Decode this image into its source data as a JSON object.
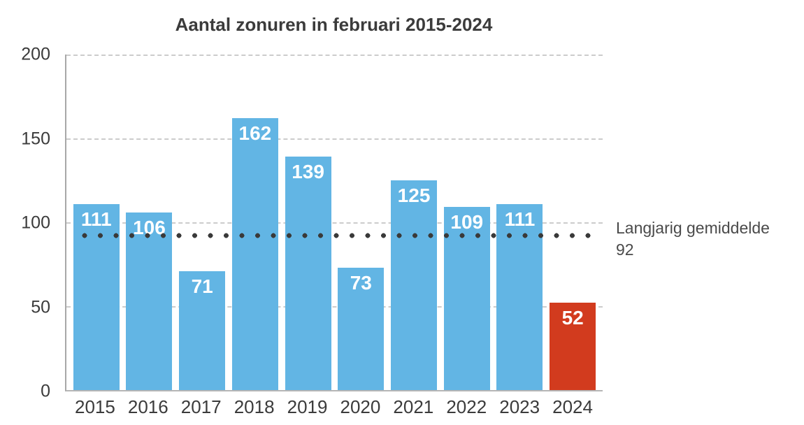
{
  "title": "Aantal zonuren in februari 2015-2024",
  "chart_data": {
    "type": "bar",
    "title": "Aantal zonuren in februari 2015-2024",
    "categories": [
      "2015",
      "2016",
      "2017",
      "2018",
      "2019",
      "2020",
      "2021",
      "2022",
      "2023",
      "2024"
    ],
    "values": [
      111,
      106,
      71,
      162,
      139,
      73,
      125,
      109,
      111,
      52
    ],
    "bar_colors": [
      "#62b5e4",
      "#62b5e4",
      "#62b5e4",
      "#62b5e4",
      "#62b5e4",
      "#62b5e4",
      "#62b5e4",
      "#62b5e4",
      "#62b5e4",
      "#d23b1e"
    ],
    "value_label_color": "#ffffff",
    "xlabel": "",
    "ylabel": "",
    "ylim": [
      0,
      200
    ],
    "yticks": [
      0,
      50,
      100,
      150,
      200
    ],
    "grid": "horizontal dashed at yticks",
    "legend_position": "none",
    "average_line": {
      "value": 92,
      "style": "dotted",
      "color": "#3a3a3a",
      "label": "Langjarig gemiddelde",
      "value_label": "92"
    }
  },
  "average_annotation": {
    "text": "Langjarig gemiddelde",
    "value": "92"
  },
  "colors": {
    "bar_blue": "#62b5e4",
    "bar_red": "#d23b1e",
    "average_dot": "#3a3a3a",
    "text_dark": "#3b3b3b",
    "gridline": "#cccccc",
    "axis": "#a8a8a8",
    "background": "#ffffff"
  }
}
